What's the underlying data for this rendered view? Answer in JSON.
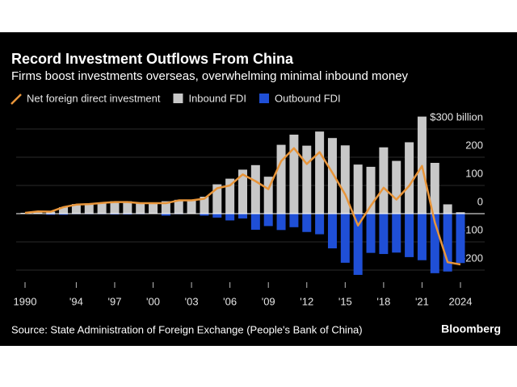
{
  "chart_data": {
    "type": "bar-line",
    "title": "Record Investment Outflows From China",
    "subtitle": "Firms boost investments overseas, overwhelming minimal inbound money",
    "source": "Source: State Administration of Foreign Exchange (People's Bank of China)",
    "brand": "Bloomberg",
    "x": [
      1990,
      1991,
      1992,
      1993,
      1994,
      1995,
      1996,
      1997,
      1998,
      1999,
      2000,
      2001,
      2002,
      2003,
      2004,
      2005,
      2006,
      2007,
      2008,
      2009,
      2010,
      2011,
      2012,
      2013,
      2014,
      2015,
      2016,
      2017,
      2018,
      2019,
      2020,
      2021,
      2022,
      2023,
      2024
    ],
    "series": [
      {
        "name": "Net foreign direct investment",
        "kind": "line",
        "color": "#e8953a",
        "values": [
          3,
          8,
          7,
          23,
          32,
          34,
          38,
          41,
          41,
          37,
          37,
          37,
          47,
          47,
          53,
          90,
          100,
          139,
          115,
          87,
          186,
          232,
          176,
          218,
          145,
          68,
          -42,
          28,
          92,
          50,
          99,
          169,
          -31,
          -172,
          -180
        ]
      },
      {
        "name": "Inbound FDI",
        "kind": "bar",
        "color": "#c8c8c8",
        "values": [
          3,
          4,
          7,
          23,
          34,
          36,
          40,
          44,
          44,
          39,
          38,
          44,
          49,
          49,
          60,
          104,
          124,
          156,
          172,
          131,
          244,
          280,
          241,
          291,
          268,
          242,
          174,
          166,
          235,
          187,
          253,
          344,
          180,
          33,
          5
        ]
      },
      {
        "name": "Outbound FDI",
        "kind": "bar",
        "color": "#1f4fd6",
        "values": [
          -1,
          -1,
          -4,
          -4,
          -2,
          -2,
          -2,
          -3,
          -3,
          -2,
          -1,
          -7,
          -2,
          -1,
          -7,
          -14,
          -24,
          -17,
          -57,
          -44,
          -58,
          -48,
          -65,
          -73,
          -123,
          -174,
          -217,
          -139,
          -143,
          -138,
          -154,
          -165,
          -211,
          -205,
          -175
        ]
      }
    ],
    "xlim": [
      1990,
      2024
    ],
    "xticks": [
      1990,
      {
        "value": 1994,
        "label": "'94"
      },
      {
        "value": 1997,
        "label": "'97"
      },
      {
        "value": 2000,
        "label": "'00"
      },
      {
        "value": 2003,
        "label": "'03"
      },
      {
        "value": 2006,
        "label": "'06"
      },
      {
        "value": 2009,
        "label": "'09"
      },
      {
        "value": 2012,
        "label": "'12"
      },
      {
        "value": 2015,
        "label": "'15"
      },
      {
        "value": 2018,
        "label": "'18"
      },
      {
        "value": 2021,
        "label": "'21"
      },
      2024
    ],
    "ylim": [
      -230,
      350
    ],
    "yticks": [
      {
        "value": 300,
        "label": "$300 billion"
      },
      200,
      100,
      0,
      -100,
      -200
    ]
  }
}
